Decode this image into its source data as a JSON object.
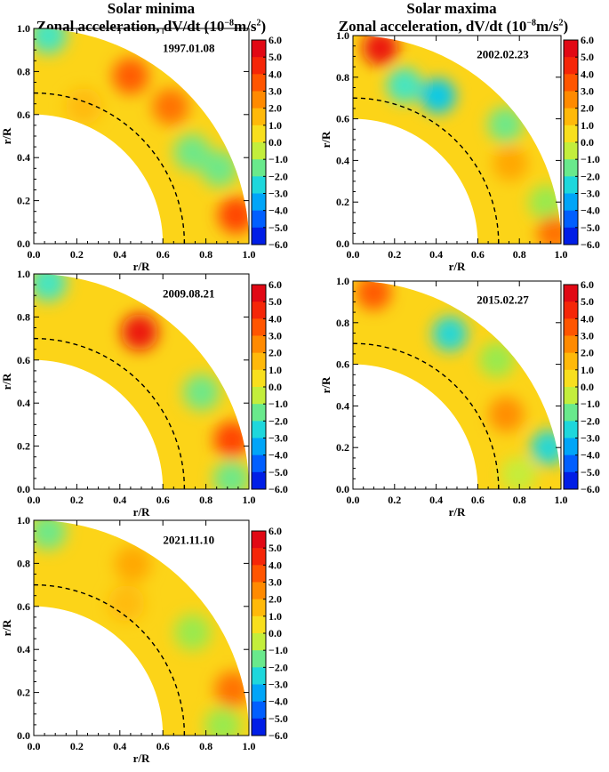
{
  "columns": [
    {
      "heading": "Solar minima",
      "subheading_main": "Zonal acceleration, dV/dt (10",
      "subheading_exp": "−8",
      "subheading_unit": "m/s",
      "subheading_sq": "2",
      "subheading_close": ")"
    },
    {
      "heading": "Solar maxima",
      "subheading_main": "Zonal acceleration, dV/dt (10",
      "subheading_exp": "−8",
      "subheading_unit": "m/s",
      "subheading_sq": "2",
      "subheading_close": ")"
    }
  ],
  "chart_data": [
    {
      "type": "heatmap",
      "date": "1997.01.08",
      "xlabel": "r/R",
      "ylabel": "r/R",
      "x_ticks": [
        "0.0",
        "0.2",
        "0.4",
        "0.6",
        "0.8",
        "1.0"
      ],
      "y_ticks": [
        "0.0",
        "0.2",
        "0.4",
        "0.6",
        "0.8",
        "1.0"
      ],
      "xlim": [
        0,
        1
      ],
      "ylim": [
        0,
        1
      ],
      "domain_r": [
        0.6,
        1.0
      ],
      "dashed_r": 0.7,
      "colorbar": {
        "range": [
          -6,
          6
        ],
        "ticks": [
          "6.0",
          "5.0",
          "4.0",
          "3.0",
          "2.0",
          "1.0",
          "0.0",
          "−1.0",
          "−2.0",
          "−3.0",
          "−4.0",
          "−5.0",
          "−6.0"
        ]
      },
      "features": [
        {
          "lat_deg": 60,
          "r": 0.9,
          "value": 3.5
        },
        {
          "lat_deg": 45,
          "r": 0.9,
          "value": 3.0
        },
        {
          "lat_deg": 30,
          "r": 0.85,
          "value": -1.5
        },
        {
          "lat_deg": 22,
          "r": 0.93,
          "value": -1.5
        },
        {
          "lat_deg": 8,
          "r": 0.95,
          "value": 4.0
        },
        {
          "lat_deg": 86,
          "r": 0.97,
          "value": -2.0
        },
        {
          "lat_deg": 70,
          "r": 0.68,
          "value": 1.5
        }
      ]
    },
    {
      "type": "heatmap",
      "date": "2002.02.23",
      "xlabel": "r/R",
      "ylabel": "r/R",
      "x_ticks": [
        "0.0",
        "0.2",
        "0.4",
        "0.6",
        "0.8",
        "1.0"
      ],
      "y_ticks": [
        "0.0",
        "0.2",
        "0.4",
        "0.6",
        "0.8",
        "1.0"
      ],
      "xlim": [
        0,
        1
      ],
      "ylim": [
        0,
        1
      ],
      "domain_r": [
        0.6,
        1.0
      ],
      "dashed_r": 0.7,
      "colorbar": {
        "range": [
          -6,
          6
        ],
        "ticks": [
          "6.0",
          "5.0",
          "4.0",
          "3.0",
          "2.0",
          "1.0",
          "0.0",
          "−1.0",
          "−2.0",
          "−3.0",
          "−4.0",
          "−5.0",
          "−6.0"
        ]
      },
      "features": [
        {
          "lat_deg": 82,
          "r": 0.95,
          "value": 5.0
        },
        {
          "lat_deg": 60,
          "r": 0.82,
          "value": -3.0
        },
        {
          "lat_deg": 72,
          "r": 0.8,
          "value": -2.0
        },
        {
          "lat_deg": 27,
          "r": 0.85,
          "value": 2.0
        },
        {
          "lat_deg": 38,
          "r": 0.93,
          "value": -1.5
        },
        {
          "lat_deg": 12,
          "r": 0.95,
          "value": -1.0
        },
        {
          "lat_deg": 3,
          "r": 0.97,
          "value": 3.0
        }
      ]
    },
    {
      "type": "heatmap",
      "date": "2009.08.21",
      "xlabel": "r/R",
      "ylabel": "r/R",
      "x_ticks": [
        "0.0",
        "0.2",
        "0.4",
        "0.6",
        "0.8",
        "1.0"
      ],
      "y_ticks": [
        "0.0",
        "0.2",
        "0.4",
        "0.6",
        "0.8",
        "1.0"
      ],
      "xlim": [
        0,
        1
      ],
      "ylim": [
        0,
        1
      ],
      "domain_r": [
        0.6,
        1.0
      ],
      "dashed_r": 0.7,
      "colorbar": {
        "range": [
          -6,
          6
        ],
        "ticks": [
          "6.0",
          "5.0",
          "4.0",
          "3.0",
          "2.0",
          "1.0",
          "0.0",
          "−1.0",
          "−2.0",
          "−3.0",
          "−4.0",
          "−5.0",
          "−6.0"
        ]
      },
      "features": [
        {
          "lat_deg": 56,
          "r": 0.88,
          "value": 5.0
        },
        {
          "lat_deg": 86,
          "r": 0.96,
          "value": -2.0
        },
        {
          "lat_deg": 14,
          "r": 0.95,
          "value": 4.0
        },
        {
          "lat_deg": 30,
          "r": 0.9,
          "value": -1.5
        },
        {
          "lat_deg": 3,
          "r": 0.92,
          "value": -1.5
        }
      ]
    },
    {
      "type": "heatmap",
      "date": "2015.02.27",
      "xlabel": "r/R",
      "ylabel": "r/R",
      "x_ticks": [
        "0.0",
        "0.2",
        "0.4",
        "0.6",
        "0.8",
        "1.0"
      ],
      "y_ticks": [
        "0.0",
        "0.2",
        "0.4",
        "0.6",
        "0.8",
        "1.0"
      ],
      "xlim": [
        0,
        1
      ],
      "ylim": [
        0,
        1
      ],
      "domain_r": [
        0.6,
        1.0
      ],
      "dashed_r": 0.7,
      "colorbar": {
        "range": [
          -6,
          6
        ],
        "ticks": [
          "6.0",
          "5.0",
          "4.0",
          "3.0",
          "2.0",
          "1.0",
          "0.0",
          "−1.0",
          "−2.0",
          "−3.0",
          "−4.0",
          "−5.0",
          "−6.0"
        ]
      },
      "features": [
        {
          "lat_deg": 84,
          "r": 0.95,
          "value": 3.5
        },
        {
          "lat_deg": 58,
          "r": 0.88,
          "value": -2.5
        },
        {
          "lat_deg": 26,
          "r": 0.82,
          "value": 2.5
        },
        {
          "lat_deg": 42,
          "r": 0.93,
          "value": -1.0
        },
        {
          "lat_deg": 12,
          "r": 0.96,
          "value": -2.5
        },
        {
          "lat_deg": 5,
          "r": 0.8,
          "value": -0.5
        }
      ]
    },
    {
      "type": "heatmap",
      "date": "2021.11.10",
      "xlabel": "r/R",
      "ylabel": "r/R",
      "x_ticks": [
        "0.0",
        "0.2",
        "0.4",
        "0.6",
        "0.8",
        "1.0"
      ],
      "y_ticks": [
        "0.0",
        "0.2",
        "0.4",
        "0.6",
        "0.8",
        "1.0"
      ],
      "xlim": [
        0,
        1
      ],
      "ylim": [
        0,
        1
      ],
      "domain_r": [
        0.6,
        1.0
      ],
      "dashed_r": 0.7,
      "colorbar": {
        "range": [
          -6,
          6
        ],
        "ticks": [
          "6.0",
          "5.0",
          "4.0",
          "3.0",
          "2.0",
          "1.0",
          "0.0",
          "−1.0",
          "−2.0",
          "−3.0",
          "−4.0",
          "−5.0",
          "−6.0"
        ]
      },
      "features": [
        {
          "lat_deg": 86,
          "r": 0.95,
          "value": -1.5
        },
        {
          "lat_deg": 60,
          "r": 0.92,
          "value": 2.0
        },
        {
          "lat_deg": 55,
          "r": 0.75,
          "value": 1.5
        },
        {
          "lat_deg": 13,
          "r": 0.95,
          "value": 3.0
        },
        {
          "lat_deg": 33,
          "r": 0.88,
          "value": -1.0
        },
        {
          "lat_deg": 3,
          "r": 0.88,
          "value": -1.0
        }
      ]
    }
  ]
}
